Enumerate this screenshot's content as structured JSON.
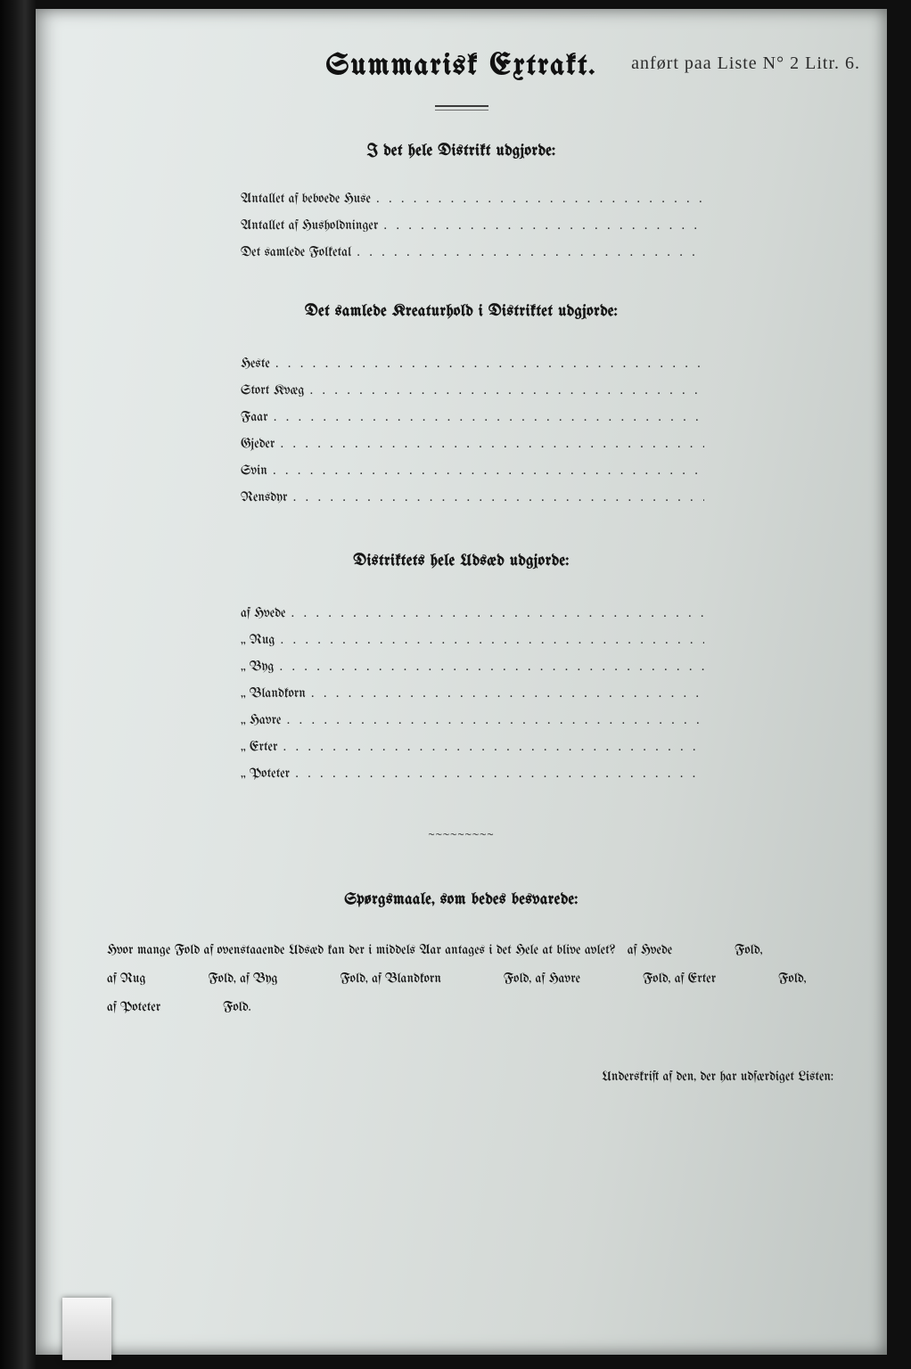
{
  "colors": {
    "page_bg_light": "#e7eceb",
    "page_bg_dark": "#bfc5c2",
    "frame_bg": "#0f0f0f",
    "ink": "#151515",
    "rule": "#3a3a3a"
  },
  "title": "Summarisk Extrakt.",
  "handwritten_note": "anført paa Liste N° 2 Litr. 6.",
  "section1": {
    "heading": "I det hele Distrikt udgjorde:",
    "rows": [
      "Antallet af beboede Huse",
      "Antallet af Husholdninger",
      "Det samlede Folketal"
    ]
  },
  "section2": {
    "heading": "Det samlede Kreaturhold i Distriktet udgjorde:",
    "rows": [
      "Heste",
      "Stort Kvæg",
      "Faar",
      "Gjeder",
      "Svin",
      "Rensdyr"
    ]
  },
  "section3": {
    "heading": "Distriktets hele Udsæd udgjorde:",
    "rows": [
      "Hvede",
      "Rug",
      "Byg",
      "Blandkorn",
      "Havre",
      "Erter",
      "Poteter"
    ]
  },
  "section4": {
    "heading": "Spørgsmaale, som bedes besvarede:",
    "question_lead": "Hvor mange Fold af ovenstaaende Udsæd kan der i middels Aar antages i det Hele at blive avlet?",
    "crops": [
      "Hvede",
      "Rug",
      "Byg",
      "Blandkorn",
      "Havre",
      "Erter",
      "Poteter"
    ],
    "unit": "Fold",
    "prefix": "af"
  },
  "signature_label": "Underskrift af den, der har udfærdiget Listen:"
}
